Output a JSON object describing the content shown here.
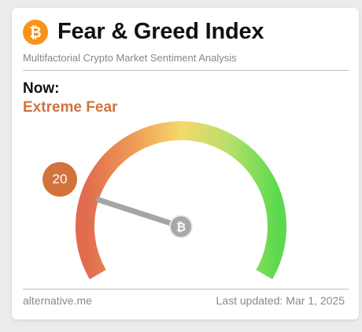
{
  "header": {
    "title": "Fear & Greed Index",
    "subtitle": "Multifactorial Crypto Market Sentiment Analysis",
    "logo_icon": "bitcoin-icon",
    "logo_glyph": "₿",
    "logo_color": "#f7931a"
  },
  "status": {
    "now_label": "Now:",
    "classification": "Extreme Fear",
    "classification_color": "#d2733c"
  },
  "gauge": {
    "value": "20",
    "numeric_value": 20,
    "min": 0,
    "max": 100,
    "badge_color": "#d2733c",
    "hub_icon": "bitcoin-icon",
    "hub_glyph": "₿",
    "colors": [
      "#e06b4f",
      "#ee9b55",
      "#f5d86a",
      "#b7e06a",
      "#5cd94e"
    ]
  },
  "footer": {
    "source": "alternative.me",
    "last_updated": "Last updated: Mar 1, 2025"
  }
}
